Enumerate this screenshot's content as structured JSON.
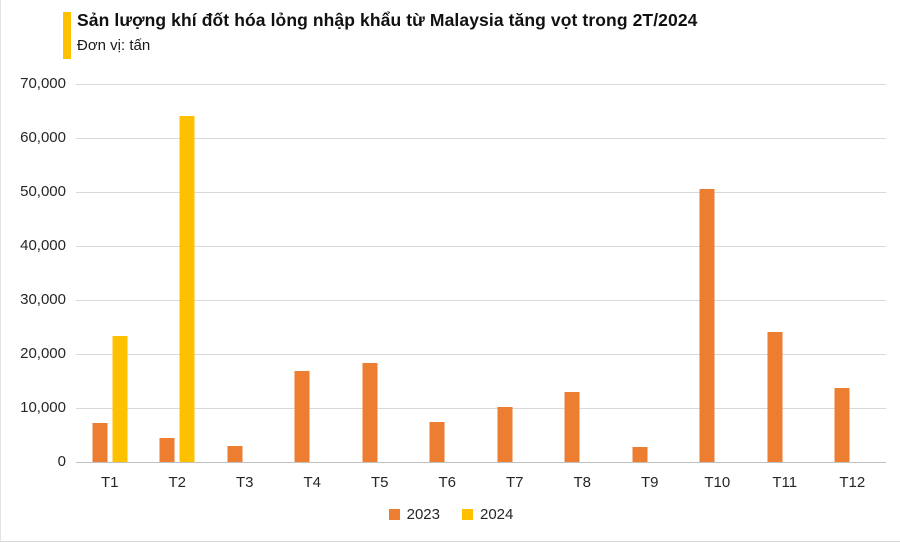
{
  "header": {
    "title": "Sản lượng khí đốt hóa lỏng nhập khẩu từ Malaysia tăng vọt trong 2T/2024",
    "subtitle": "Đơn vị: tấn"
  },
  "colors": {
    "accent": "#FFC000",
    "series_2023": "#ED7D31",
    "series_2024": "#FFC000",
    "gridline": "#D9D9D9",
    "axis_line": "#BFBFBF"
  },
  "chart_data": {
    "type": "bar",
    "title": "Sản lượng khí đốt hóa lỏng nhập khẩu từ Malaysia tăng vọt trong 2T/2024",
    "unit_label": "Đơn vị: tấn",
    "categories": [
      "T1",
      "T2",
      "T3",
      "T4",
      "T5",
      "T6",
      "T7",
      "T8",
      "T9",
      "T10",
      "T11",
      "T12"
    ],
    "series": [
      {
        "name": "2023",
        "color": "#ED7D31",
        "values": [
          7200,
          4500,
          2900,
          16900,
          18400,
          7500,
          10200,
          13000,
          2800,
          50500,
          24000,
          13700
        ]
      },
      {
        "name": "2024",
        "color": "#FFC000",
        "values": [
          23300,
          64000,
          null,
          null,
          null,
          null,
          null,
          null,
          null,
          null,
          null,
          null
        ]
      }
    ],
    "ylim": [
      0,
      70000
    ],
    "ytick_step": 10000,
    "ytick_labels": [
      "70,000",
      "60,000",
      "50,000",
      "40,000",
      "30,000",
      "20,000",
      "10,000",
      "0"
    ],
    "xlabel": "",
    "ylabel": "",
    "grid": true,
    "legend_position": "bottom"
  }
}
